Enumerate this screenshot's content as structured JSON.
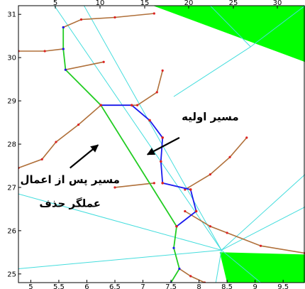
{
  "chart_data": {
    "type": "line",
    "xlim": [
      4.78,
      9.89
    ],
    "ylim": [
      24.8,
      31.2
    ],
    "top_axis_ticks": [
      5,
      10,
      15,
      20,
      25,
      30
    ],
    "bottom_axis_ticks": [
      5,
      5.5,
      6,
      6.5,
      7,
      7.5,
      8,
      8.5,
      9,
      9.5
    ],
    "y_axis_ticks": [
      25,
      26,
      27,
      28,
      29,
      30,
      31
    ],
    "obstacles": [
      {
        "name": "obstacle-top-right",
        "color": "#00ff00",
        "points": [
          [
            7.18,
            31.2
          ],
          [
            9.89,
            31.2
          ],
          [
            9.89,
            29.9
          ]
        ]
      },
      {
        "name": "obstacle-bottom-right",
        "color": "#00ff00",
        "points": [
          [
            8.37,
            25.5
          ],
          [
            9.89,
            25.45
          ],
          [
            9.89,
            24.8
          ],
          [
            8.5,
            24.8
          ]
        ]
      }
    ],
    "cyan_lines": [
      [
        [
          5.42,
          31.2
        ],
        [
          8.4,
          25.55
        ]
      ],
      [
        [
          5.95,
          31.2
        ],
        [
          8.4,
          25.55
        ]
      ],
      [
        [
          4.78,
          26.85
        ],
        [
          8.4,
          25.55
        ]
      ],
      [
        [
          4.78,
          25.12
        ],
        [
          8.4,
          25.55
        ]
      ],
      [
        [
          8.4,
          25.55
        ],
        [
          9.1,
          24.8
        ]
      ],
      [
        [
          8.4,
          25.55
        ],
        [
          8.3,
          24.8
        ]
      ],
      [
        [
          8.4,
          25.55
        ],
        [
          9.89,
          27.3
        ]
      ],
      [
        [
          8.4,
          25.55
        ],
        [
          9.89,
          26.55
        ]
      ],
      [
        [
          8.92,
          30.25
        ],
        [
          9.89,
          31.2
        ]
      ],
      [
        [
          8.92,
          30.25
        ],
        [
          8.2,
          31.2
        ]
      ],
      [
        [
          8.92,
          30.25
        ],
        [
          7.55,
          29.1
        ]
      ]
    ],
    "brown_branches": [
      [
        [
          4.78,
          30.15
        ],
        [
          5.25,
          30.15
        ],
        [
          5.58,
          30.2
        ]
      ],
      [
        [
          5.58,
          30.7
        ],
        [
          5.9,
          30.88
        ],
        [
          6.5,
          30.93
        ],
        [
          7.2,
          31.02
        ]
      ],
      [
        [
          5.62,
          29.72
        ],
        [
          6.3,
          29.9
        ]
      ],
      [
        [
          4.78,
          27.45
        ],
        [
          5.2,
          27.65
        ],
        [
          5.45,
          28.05
        ],
        [
          5.85,
          28.45
        ],
        [
          6.25,
          28.9
        ]
      ],
      [
        [
          6.25,
          28.9
        ],
        [
          6.9,
          28.9
        ],
        [
          7.25,
          29.2
        ],
        [
          7.35,
          29.7
        ]
      ],
      [
        [
          6.5,
          27.0
        ],
        [
          7.2,
          27.1
        ]
      ],
      [
        [
          7.75,
          26.95
        ],
        [
          8.2,
          27.3
        ],
        [
          8.55,
          27.7
        ],
        [
          8.85,
          28.15
        ]
      ],
      [
        [
          7.75,
          26.45
        ],
        [
          8.2,
          26.1
        ],
        [
          8.5,
          25.95
        ],
        [
          9.1,
          25.65
        ],
        [
          9.89,
          25.48
        ]
      ],
      [
        [
          7.65,
          25.12
        ],
        [
          7.85,
          24.95
        ],
        [
          8.1,
          24.8
        ]
      ]
    ],
    "green_path": [
      [
        5.58,
        30.7
      ],
      [
        5.58,
        30.2
      ],
      [
        5.62,
        29.72
      ],
      [
        6.25,
        28.9
      ],
      [
        7.6,
        26.1
      ],
      [
        7.55,
        25.6
      ],
      [
        7.65,
        25.12
      ],
      [
        7.5,
        24.8
      ]
    ],
    "blue_path": [
      [
        6.25,
        28.9
      ],
      [
        6.8,
        28.9
      ],
      [
        7.12,
        28.55
      ],
      [
        7.35,
        28.15
      ],
      [
        7.32,
        27.6
      ],
      [
        7.35,
        27.1
      ],
      [
        7.85,
        26.95
      ],
      [
        7.95,
        26.45
      ],
      [
        7.6,
        26.1
      ]
    ],
    "annotations": [
      {
        "text": "مسیر اولیه",
        "x": 8.2,
        "y": 28.55
      },
      {
        "text": "مسیر پس از اعمال",
        "x": 5.7,
        "y": 27.1
      },
      {
        "text": "عملگر حذف",
        "x": 5.7,
        "y": 26.55
      }
    ],
    "arrows": [
      {
        "from": [
          7.65,
          28.15
        ],
        "to": [
          7.08,
          27.76
        ]
      },
      {
        "from": [
          5.7,
          27.45
        ],
        "to": [
          6.2,
          27.98
        ]
      }
    ],
    "colors": {
      "obstacle": "#00ff00",
      "green_path": "#22cc22",
      "blue_path": "#1a1aee",
      "branch": "#b0703a",
      "branch_node": "#dd2222",
      "cyan": "#44dddd",
      "frame": "#000000"
    }
  }
}
